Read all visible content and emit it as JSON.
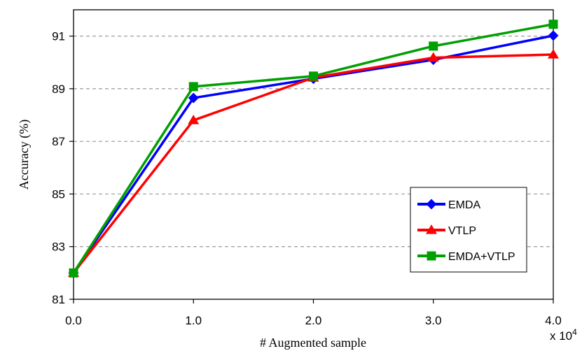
{
  "chart_data": {
    "type": "line",
    "title": "",
    "xlabel": "# Augmented sample",
    "ylabel": "Accuracy (%)",
    "x_multiplier_label": "x 10",
    "x_multiplier_exponent": "4",
    "x": [
      0.0,
      1.0,
      2.0,
      3.0,
      4.0
    ],
    "xtick_labels": [
      "0.0",
      "1.0",
      "2.0",
      "3.0",
      "4.0"
    ],
    "ytick_labels": [
      "81",
      "83",
      "85",
      "87",
      "89",
      "91"
    ],
    "yticks": [
      81,
      83,
      85,
      87,
      89,
      91
    ],
    "xlim": [
      0,
      4
    ],
    "ylim": [
      81,
      92
    ],
    "grid": "horizontal dashed",
    "legend_position": "lower-right",
    "series": [
      {
        "name": "EMDA",
        "color": "#0000ff",
        "marker": "diamond",
        "values": [
          82.0,
          88.65,
          89.38,
          90.1,
          91.02
        ]
      },
      {
        "name": "VTLP",
        "color": "#ff0000",
        "marker": "triangle",
        "values": [
          82.0,
          87.8,
          89.42,
          90.18,
          90.3
        ]
      },
      {
        "name": "EMDA+VTLP",
        "color": "#00a000",
        "marker": "square",
        "values": [
          82.0,
          89.08,
          89.48,
          90.62,
          91.45
        ]
      }
    ]
  }
}
